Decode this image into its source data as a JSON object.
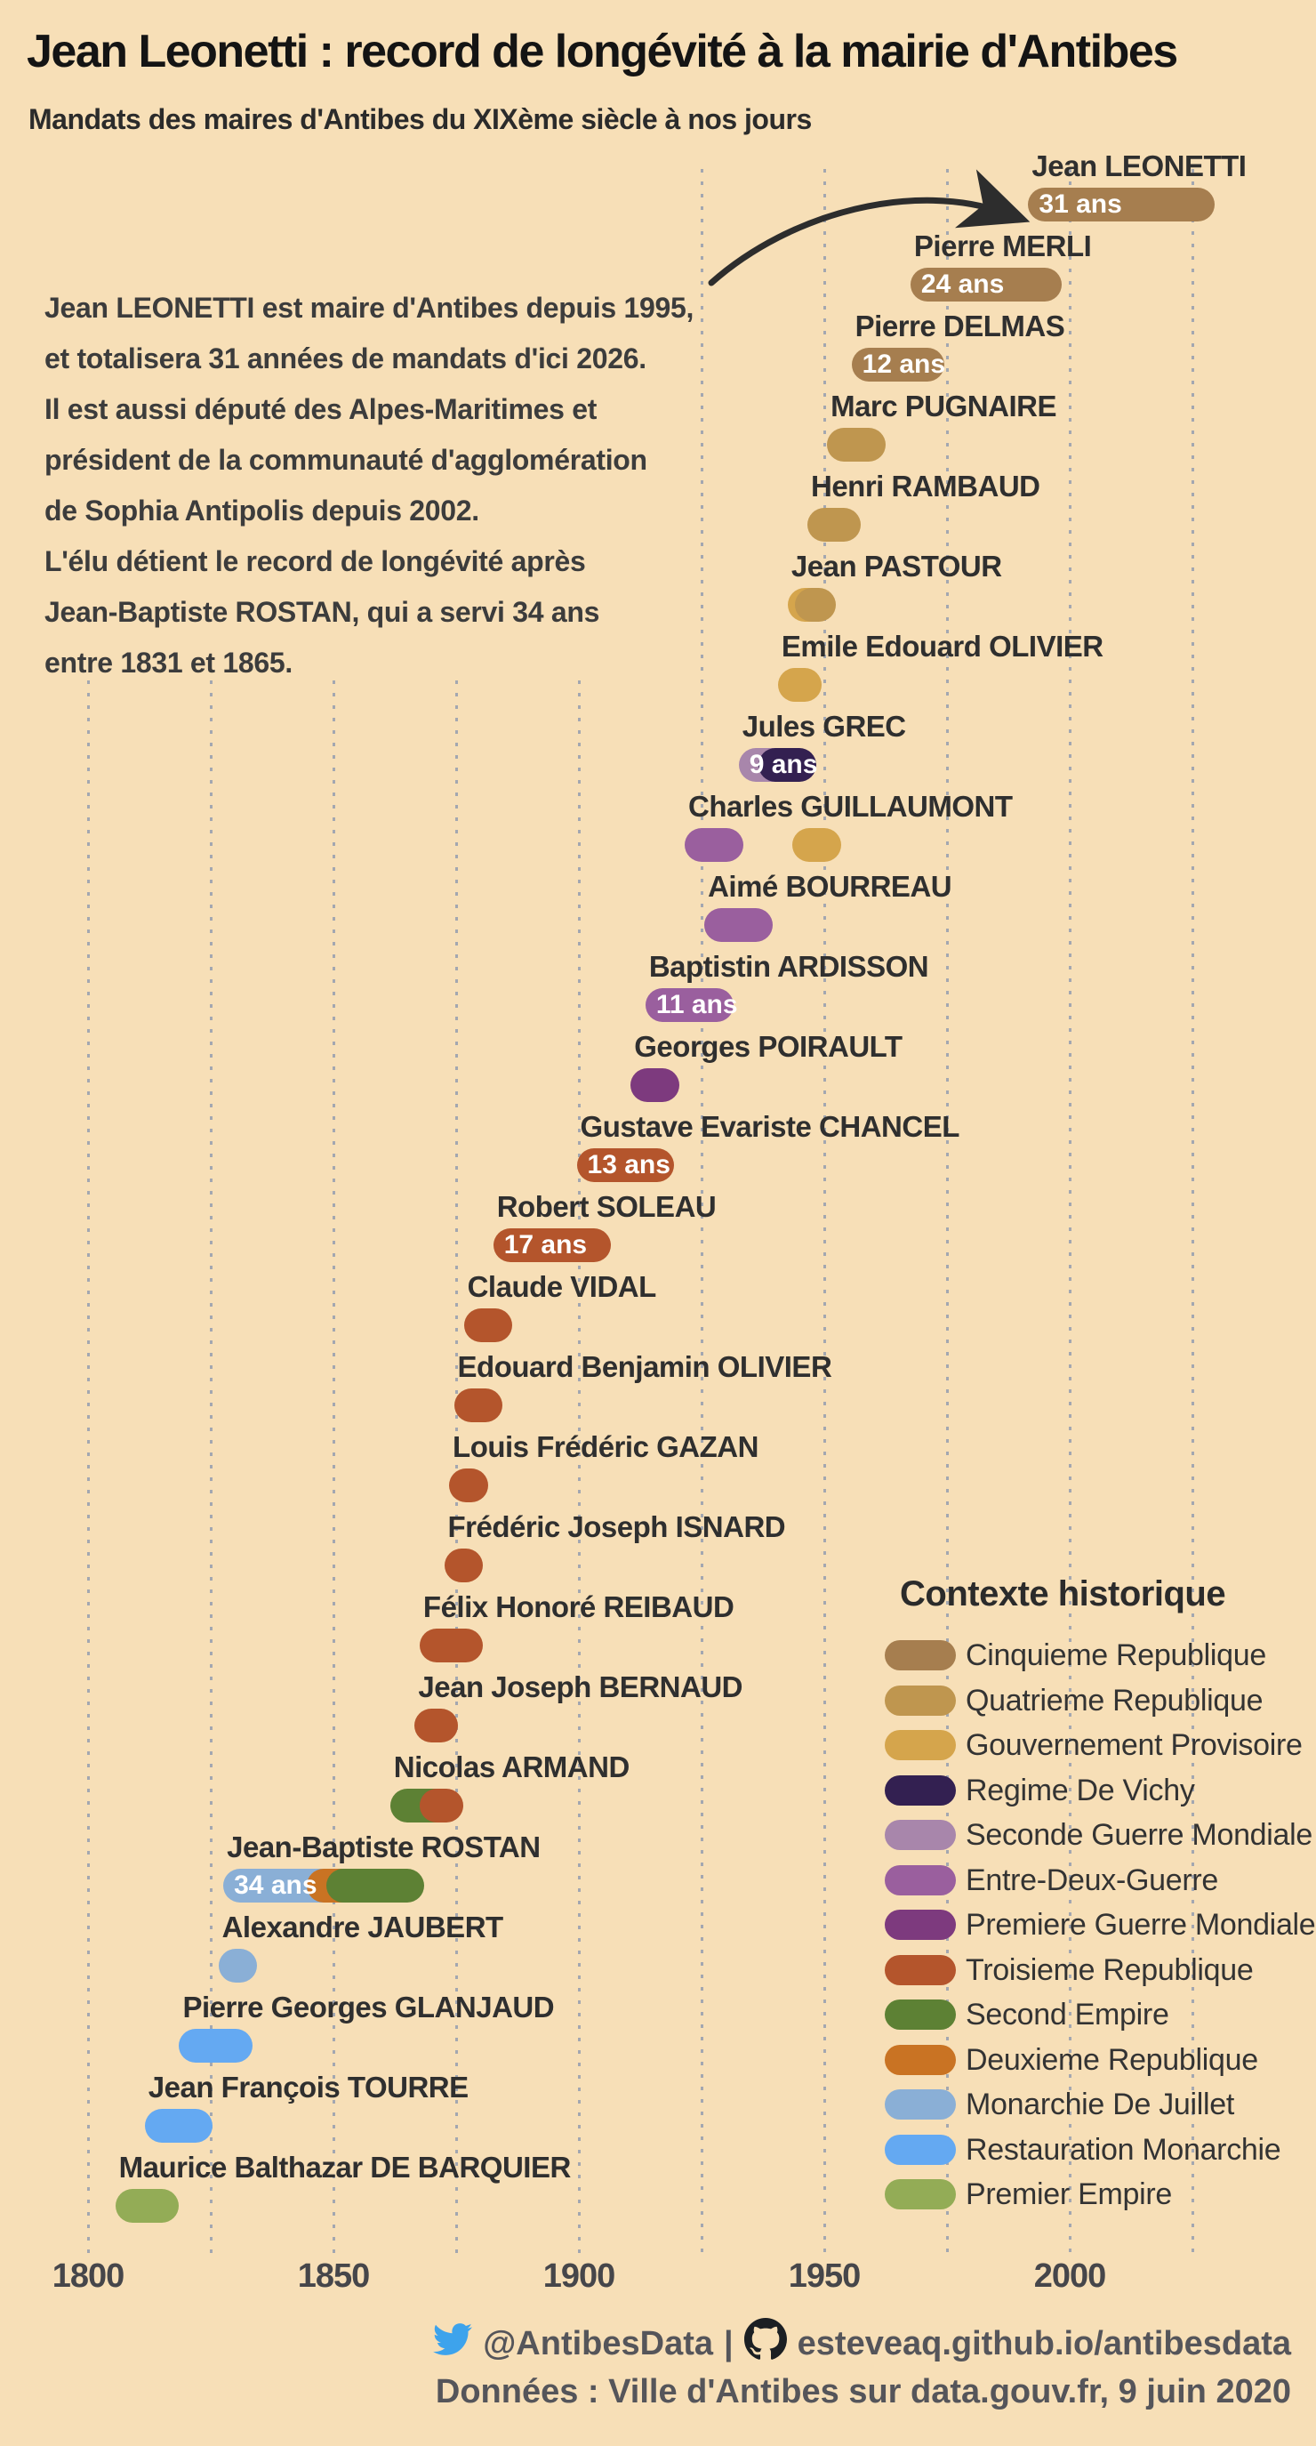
{
  "header": {
    "title": "Jean Leonetti : record de longévité à la mairie d'Antibes",
    "subtitle": "Mandats des maires d'Antibes du XIXème siècle à nos jours"
  },
  "annotation": {
    "lines": [
      "Jean LEONETTI est maire d'Antibes depuis 1995,",
      "et totalisera 31 années de mandats d'ici 2026.",
      "Il est aussi député des Alpes-Maritimes et",
      "président de la communauté d'agglomération",
      "de Sophia Antipolis depuis 2002.",
      "L'élu détient le record de longévité après",
      "Jean-Baptiste ROSTAN, qui a servi 34 ans",
      "entre 1831 et 1865."
    ]
  },
  "chart_data": {
    "type": "timeline",
    "title": "Mandats des maires d'Antibes du XIXème siècle à nos jours",
    "axis": {
      "tick_years": [
        1800,
        1850,
        1900,
        1950,
        2000
      ],
      "gridline_step": 25,
      "gridline_start": 1800,
      "gridline_end": 2025,
      "range": [
        1800,
        2035
      ]
    },
    "legend": {
      "title": "Contexte historique",
      "position": "bottom-right",
      "items": [
        {
          "label": "Cinquieme Republique",
          "color": "#A67E4F"
        },
        {
          "label": "Quatrieme Republique",
          "color": "#BF964F"
        },
        {
          "label": "Gouvernement Provisoire",
          "color": "#D5A54C"
        },
        {
          "label": "Regime De Vichy",
          "color": "#332051"
        },
        {
          "label": "Seconde Guerre Mondiale",
          "color": "#A886AB"
        },
        {
          "label": "Entre-Deux-Guerre",
          "color": "#9A5F9E"
        },
        {
          "label": "Premiere Guerre Mondiale",
          "color": "#7D3A7E"
        },
        {
          "label": "Troisieme Republique",
          "color": "#B4552C"
        },
        {
          "label": "Second Empire",
          "color": "#5D8134"
        },
        {
          "label": "Deuxieme Republique",
          "color": "#C97323"
        },
        {
          "label": "Monarchie De Juillet",
          "color": "#8AAFD6"
        },
        {
          "label": "Restauration Monarchie",
          "color": "#64A9F2"
        },
        {
          "label": "Premier Empire",
          "color": "#93AC56"
        }
      ]
    },
    "mayors": [
      {
        "name": "Jean LEONETTI",
        "duration_label": "31 ans",
        "segments": [
          {
            "period": "Cinquieme Republique",
            "start": 1995,
            "end": 2026
          }
        ]
      },
      {
        "name": "Pierre MERLI",
        "duration_label": "24 ans",
        "segments": [
          {
            "period": "Cinquieme Republique",
            "start": 1971,
            "end": 1995
          }
        ]
      },
      {
        "name": "Pierre DELMAS",
        "duration_label": "12 ans",
        "segments": [
          {
            "period": "Cinquieme Republique",
            "start": 1959,
            "end": 1971
          }
        ]
      },
      {
        "name": "Marc PUGNAIRE",
        "duration_label": null,
        "segments": [
          {
            "period": "Quatrieme Republique",
            "start": 1954,
            "end": 1959
          }
        ]
      },
      {
        "name": "Henri RAMBAUD",
        "duration_label": null,
        "segments": [
          {
            "period": "Quatrieme Republique",
            "start": 1950,
            "end": 1954
          }
        ]
      },
      {
        "name": "Jean PASTOUR",
        "duration_label": null,
        "segments": [
          {
            "period": "Gouvernement Provisoire",
            "start": 1946,
            "end": 1948
          },
          {
            "period": "Quatrieme Republique",
            "start": 1947.5,
            "end": 1949
          }
        ]
      },
      {
        "name": "Emile Edouard OLIVIER",
        "duration_label": null,
        "segments": [
          {
            "period": "Gouvernement Provisoire",
            "start": 1944,
            "end": 1946
          }
        ]
      },
      {
        "name": "Jules GREC",
        "duration_label": "9 ans",
        "segments": [
          {
            "period": "Seconde Guerre Mondiale",
            "start": 1936,
            "end": 1940
          },
          {
            "period": "Regime De Vichy",
            "start": 1940,
            "end": 1945
          }
        ]
      },
      {
        "name": "Charles GUILLAUMONT",
        "duration_label": null,
        "segments": [
          {
            "period": "Entre-Deux-Guerre",
            "start": 1925,
            "end": 1930
          },
          {
            "period": "Gouvernement Provisoire",
            "start": 1947,
            "end": 1950
          }
        ]
      },
      {
        "name": "Aimé BOURREAU",
        "duration_label": null,
        "segments": [
          {
            "period": "Entre-Deux-Guerre",
            "start": 1929,
            "end": 1936
          }
        ]
      },
      {
        "name": "Baptistin ARDISSON",
        "duration_label": "11 ans",
        "segments": [
          {
            "period": "Entre-Deux-Guerre",
            "start": 1917,
            "end": 1928
          }
        ]
      },
      {
        "name": "Georges POIRAULT",
        "duration_label": null,
        "segments": [
          {
            "period": "Premiere Guerre Mondiale",
            "start": 1914,
            "end": 1917
          }
        ]
      },
      {
        "name": "Gustave Evariste CHANCEL",
        "duration_label": "13 ans",
        "segments": [
          {
            "period": "Troisieme Republique",
            "start": 1903,
            "end": 1916
          }
        ]
      },
      {
        "name": "Robert SOLEAU",
        "duration_label": "17 ans",
        "segments": [
          {
            "period": "Troisieme Republique",
            "start": 1886,
            "end": 1903
          }
        ]
      },
      {
        "name": "Claude VIDAL",
        "duration_label": null,
        "segments": [
          {
            "period": "Troisieme Republique",
            "start": 1880,
            "end": 1883
          }
        ]
      },
      {
        "name": "Edouard Benjamin OLIVIER",
        "duration_label": null,
        "segments": [
          {
            "period": "Troisieme Republique",
            "start": 1878,
            "end": 1881
          }
        ]
      },
      {
        "name": "Louis Frédéric GAZAN",
        "duration_label": null,
        "segments": [
          {
            "period": "Troisieme Republique",
            "start": 1877,
            "end": 1878
          }
        ]
      },
      {
        "name": "Frédéric Joseph ISNARD",
        "duration_label": null,
        "segments": [
          {
            "period": "Troisieme Republique",
            "start": 1876,
            "end": 1877
          }
        ]
      },
      {
        "name": "Félix Honoré REIBAUD",
        "duration_label": null,
        "segments": [
          {
            "period": "Troisieme Republique",
            "start": 1871,
            "end": 1877
          }
        ]
      },
      {
        "name": "Jean Joseph BERNAUD",
        "duration_label": null,
        "segments": [
          {
            "period": "Troisieme Republique",
            "start": 1870,
            "end": 1872
          }
        ]
      },
      {
        "name": "Nicolas ARMAND",
        "duration_label": null,
        "segments": [
          {
            "period": "Second Empire",
            "start": 1865,
            "end": 1871
          },
          {
            "period": "Troisieme Republique",
            "start": 1871,
            "end": 1873
          }
        ]
      },
      {
        "name": "Jean-Baptiste ROSTAN",
        "duration_label": "34 ans",
        "segments": [
          {
            "period": "Monarchie De Juillet",
            "start": 1831,
            "end": 1848
          },
          {
            "period": "Deuxieme Republique",
            "start": 1848,
            "end": 1852
          },
          {
            "period": "Second Empire",
            "start": 1852,
            "end": 1865
          }
        ]
      },
      {
        "name": "Alexandre JAUBERT",
        "duration_label": null,
        "segments": [
          {
            "period": "Monarchie De Juillet",
            "start": 1830,
            "end": 1831
          }
        ]
      },
      {
        "name": "Pierre Georges GLANJAUD",
        "duration_label": null,
        "segments": [
          {
            "period": "Restauration Monarchie",
            "start": 1822,
            "end": 1830
          }
        ]
      },
      {
        "name": "Jean François TOURRE",
        "duration_label": null,
        "segments": [
          {
            "period": "Restauration Monarchie",
            "start": 1815,
            "end": 1822
          }
        ]
      },
      {
        "name": "Maurice Balthazar DE BARQUIER",
        "duration_label": null,
        "segments": [
          {
            "period": "Premier Empire",
            "start": 1809,
            "end": 1815
          }
        ]
      }
    ]
  },
  "footer": {
    "twitter_handle": "@AntibesData",
    "separator": "|",
    "site": "esteveaq.github.io/antibesdata",
    "source_line": "Données : Ville d'Antibes sur data.gouv.fr, 9 juin 2020"
  },
  "colors": {
    "background": "#F7DFB7",
    "grid": "#A3A7B0",
    "arrow": "#2D2D2D",
    "bar_label": "#FFFFFF",
    "twitter": "#3DA3EC",
    "github": "#1B1F23",
    "text": "#2F2F2F"
  }
}
